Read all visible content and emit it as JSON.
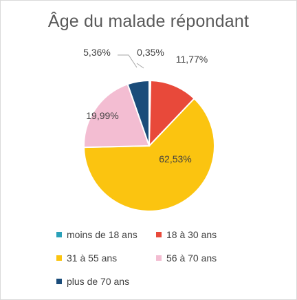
{
  "chart_data": {
    "type": "pie",
    "title": "Âge du malade répondant",
    "categories": [
      "moins de 18 ans",
      "18 à 30 ans",
      "31 à 55 ans",
      "56 à 70 ans",
      "plus de 70 ans"
    ],
    "values": [
      0.35,
      11.77,
      62.53,
      19.99,
      5.36
    ],
    "labels": [
      "0,35%",
      "11,77%",
      "62,53%",
      "19,99%",
      "5,36%"
    ],
    "colors": [
      "#2aa1b9",
      "#e8493a",
      "#fbc410",
      "#f3bdd2",
      "#1a4c7a"
    ],
    "legend_position": "bottom",
    "start_angle_deg": 0,
    "direction": "clockwise"
  }
}
